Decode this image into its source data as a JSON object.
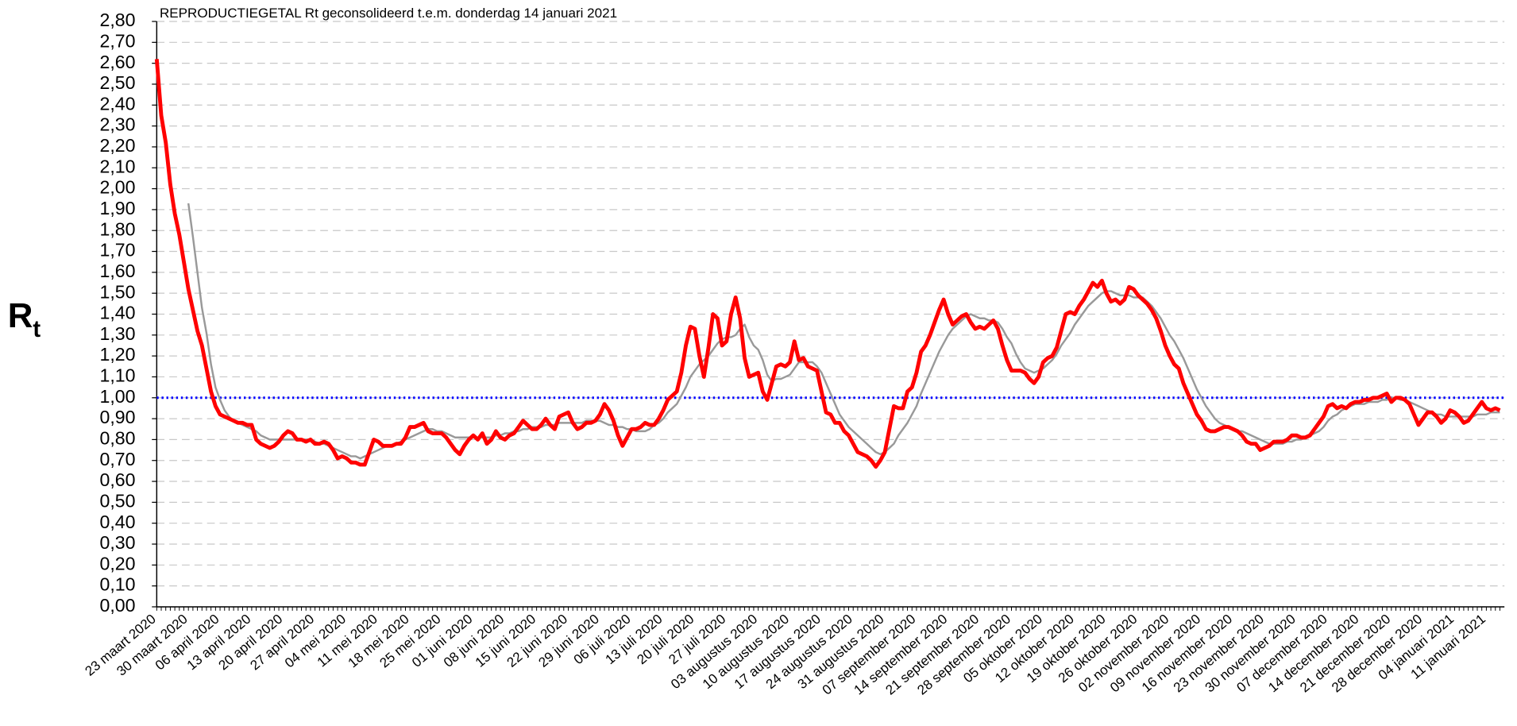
{
  "chart_data": {
    "type": "line",
    "title": "REPRODUCTIEGETAL Rt geconsolideerd t.e.m. donderdag 14 januari 2021",
    "y_label": "R",
    "y_label_sub": "t",
    "categories": [
      "23 maart 2020",
      null,
      null,
      null,
      null,
      null,
      null,
      "30 maart 2020",
      null,
      null,
      null,
      null,
      null,
      null,
      "06 april 2020",
      null,
      null,
      null,
      null,
      null,
      null,
      "13 april 2020",
      null,
      null,
      null,
      null,
      null,
      null,
      "20 april 2020",
      null,
      null,
      null,
      null,
      null,
      null,
      "27 april 2020",
      null,
      null,
      null,
      null,
      null,
      null,
      "04 mei 2020",
      null,
      null,
      null,
      null,
      null,
      null,
      "11 mei 2020",
      null,
      null,
      null,
      null,
      null,
      null,
      "18 mei 2020",
      null,
      null,
      null,
      null,
      null,
      null,
      "25 mei 2020",
      null,
      null,
      null,
      null,
      null,
      null,
      "01 juni 2020",
      null,
      null,
      null,
      null,
      null,
      null,
      "08 juni 2020",
      null,
      null,
      null,
      null,
      null,
      null,
      "15 juni 2020",
      null,
      null,
      null,
      null,
      null,
      null,
      "22 juni 2020",
      null,
      null,
      null,
      null,
      null,
      null,
      "29 juni 2020",
      null,
      null,
      null,
      null,
      null,
      null,
      "06 juli 2020",
      null,
      null,
      null,
      null,
      null,
      null,
      "13 juli 2020",
      null,
      null,
      null,
      null,
      null,
      null,
      "20 juli 2020",
      null,
      null,
      null,
      null,
      null,
      null,
      "27 juli 2020",
      null,
      null,
      null,
      null,
      null,
      null,
      "03 augustus 2020",
      null,
      null,
      null,
      null,
      null,
      null,
      "10 augustus 2020",
      null,
      null,
      null,
      null,
      null,
      null,
      "17 augustus 2020",
      null,
      null,
      null,
      null,
      null,
      null,
      "24 augustus 2020",
      null,
      null,
      null,
      null,
      null,
      null,
      "31 augustus 2020",
      null,
      null,
      null,
      null,
      null,
      null,
      "07 september 2020",
      null,
      null,
      null,
      null,
      null,
      null,
      "14 september 2020",
      null,
      null,
      null,
      null,
      null,
      null,
      "21 september 2020",
      null,
      null,
      null,
      null,
      null,
      null,
      "28 september 2020",
      null,
      null,
      null,
      null,
      null,
      null,
      "05 oktober 2020",
      null,
      null,
      null,
      null,
      null,
      null,
      "12 oktober 2020",
      null,
      null,
      null,
      null,
      null,
      null,
      "19 oktober 2020",
      null,
      null,
      null,
      null,
      null,
      null,
      "26 oktober 2020",
      null,
      null,
      null,
      null,
      null,
      null,
      "02 november 2020",
      null,
      null,
      null,
      null,
      null,
      null,
      "09 november 2020",
      null,
      null,
      null,
      null,
      null,
      null,
      "16 november 2020",
      null,
      null,
      null,
      null,
      null,
      null,
      "23 november 2020",
      null,
      null,
      null,
      null,
      null,
      null,
      "30 november 2020",
      null,
      null,
      null,
      null,
      null,
      null,
      "07 december 2020",
      null,
      null,
      null,
      null,
      null,
      null,
      "14 december 2020",
      null,
      null,
      null,
      null,
      null,
      null,
      "21 december 2020",
      null,
      null,
      null,
      null,
      null,
      null,
      "28 december 2020",
      null,
      null,
      null,
      null,
      null,
      null,
      "04 januari 2021",
      null,
      null,
      null,
      null,
      null,
      null,
      "11 januari 2021",
      null,
      null,
      null
    ],
    "series": [
      {
        "color": "#ff0000",
        "values": [
          2.62,
          2.35,
          2.22,
          2.02,
          1.88,
          1.78,
          1.65,
          1.52,
          1.42,
          1.32,
          1.25,
          1.14,
          1.03,
          0.96,
          0.92,
          0.91,
          0.9,
          0.89,
          0.88,
          0.88,
          0.87,
          0.87,
          0.8,
          0.78,
          0.77,
          0.76,
          0.77,
          0.79,
          0.82,
          0.84,
          0.83,
          0.8,
          0.8,
          0.79,
          0.8,
          0.78,
          0.78,
          0.79,
          0.78,
          0.75,
          0.71,
          0.72,
          0.71,
          0.69,
          0.69,
          0.68,
          0.68,
          0.74,
          0.8,
          0.79,
          0.77,
          0.77,
          0.77,
          0.78,
          0.78,
          0.81,
          0.86,
          0.86,
          0.87,
          0.88,
          0.84,
          0.83,
          0.83,
          0.83,
          0.81,
          0.78,
          0.75,
          0.73,
          0.77,
          0.8,
          0.82,
          0.8,
          0.83,
          0.78,
          0.8,
          0.84,
          0.81,
          0.8,
          0.82,
          0.83,
          0.86,
          0.89,
          0.87,
          0.85,
          0.85,
          0.87,
          0.9,
          0.87,
          0.85,
          0.91,
          0.92,
          0.93,
          0.88,
          0.85,
          0.86,
          0.88,
          0.88,
          0.89,
          0.92,
          0.97,
          0.94,
          0.89,
          0.82,
          0.77,
          0.81,
          0.85,
          0.85,
          0.86,
          0.88,
          0.87,
          0.87,
          0.9,
          0.94,
          0.99,
          1.01,
          1.03,
          1.12,
          1.25,
          1.34,
          1.33,
          1.2,
          1.1,
          1.24,
          1.4,
          1.38,
          1.25,
          1.27,
          1.4,
          1.48,
          1.38,
          1.19,
          1.1,
          1.11,
          1.12,
          1.03,
          0.99,
          1.07,
          1.15,
          1.16,
          1.15,
          1.17,
          1.27,
          1.18,
          1.19,
          1.15,
          1.14,
          1.13,
          1.03,
          0.93,
          0.92,
          0.88,
          0.88,
          0.84,
          0.82,
          0.78,
          0.74,
          0.73,
          0.72,
          0.7,
          0.67,
          0.7,
          0.74,
          0.85,
          0.96,
          0.95,
          0.95,
          1.03,
          1.05,
          1.12,
          1.22,
          1.25,
          1.3,
          1.36,
          1.42,
          1.47,
          1.4,
          1.35,
          1.37,
          1.39,
          1.4,
          1.36,
          1.33,
          1.34,
          1.33,
          1.35,
          1.37,
          1.33,
          1.25,
          1.18,
          1.13,
          1.13,
          1.13,
          1.12,
          1.09,
          1.07,
          1.1,
          1.17,
          1.19,
          1.2,
          1.24,
          1.32,
          1.4,
          1.41,
          1.4,
          1.44,
          1.47,
          1.51,
          1.55,
          1.53,
          1.56,
          1.5,
          1.46,
          1.47,
          1.45,
          1.47,
          1.53,
          1.52,
          1.49,
          1.47,
          1.45,
          1.42,
          1.38,
          1.32,
          1.25,
          1.2,
          1.16,
          1.14,
          1.07,
          1.02,
          0.97,
          0.92,
          0.89,
          0.85,
          0.84,
          0.84,
          0.85,
          0.86,
          0.86,
          0.85,
          0.84,
          0.82,
          0.79,
          0.78,
          0.78,
          0.75,
          0.76,
          0.77,
          0.79,
          0.79,
          0.79,
          0.8,
          0.82,
          0.82,
          0.81,
          0.81,
          0.82,
          0.85,
          0.88,
          0.91,
          0.96,
          0.97,
          0.95,
          0.96,
          0.95,
          0.97,
          0.98,
          0.98,
          0.99,
          0.99,
          1.0,
          1.0,
          1.01,
          1.02,
          0.98,
          1.0,
          1.0,
          0.99,
          0.97,
          0.92,
          0.87,
          0.9,
          0.93,
          0.93,
          0.91,
          0.88,
          0.9,
          0.94,
          0.93,
          0.91,
          0.88,
          0.89,
          0.92,
          0.95,
          0.98,
          0.95,
          0.94,
          0.95,
          0.94
        ]
      },
      {
        "color": "#999999",
        "values": [
          null,
          null,
          null,
          null,
          null,
          null,
          null,
          1.93,
          1.77,
          1.6,
          1.43,
          1.31,
          1.16,
          1.05,
          0.99,
          0.94,
          0.91,
          0.89,
          0.88,
          0.87,
          0.86,
          0.85,
          0.84,
          0.82,
          0.81,
          0.8,
          0.8,
          0.8,
          0.8,
          0.8,
          0.8,
          0.8,
          0.8,
          0.8,
          0.8,
          0.79,
          0.78,
          0.78,
          0.77,
          0.76,
          0.75,
          0.74,
          0.73,
          0.72,
          0.72,
          0.71,
          0.72,
          0.73,
          0.74,
          0.75,
          0.76,
          0.77,
          0.77,
          0.78,
          0.79,
          0.8,
          0.81,
          0.82,
          0.83,
          0.84,
          0.85,
          0.85,
          0.84,
          0.84,
          0.83,
          0.82,
          0.81,
          0.81,
          0.81,
          0.81,
          0.81,
          0.81,
          0.81,
          0.81,
          0.81,
          0.82,
          0.82,
          0.83,
          0.83,
          0.84,
          0.84,
          0.85,
          0.85,
          0.86,
          0.86,
          0.86,
          0.87,
          0.87,
          0.87,
          0.88,
          0.88,
          0.88,
          0.88,
          0.88,
          0.88,
          0.89,
          0.89,
          0.89,
          0.89,
          0.88,
          0.87,
          0.87,
          0.86,
          0.86,
          0.85,
          0.85,
          0.84,
          0.84,
          0.84,
          0.85,
          0.87,
          0.88,
          0.9,
          0.93,
          0.95,
          0.97,
          1.01,
          1.05,
          1.1,
          1.13,
          1.16,
          1.18,
          1.2,
          1.23,
          1.26,
          1.28,
          1.29,
          1.29,
          1.3,
          1.33,
          1.35,
          1.29,
          1.25,
          1.23,
          1.18,
          1.11,
          1.08,
          1.09,
          1.09,
          1.1,
          1.11,
          1.14,
          1.17,
          1.17,
          1.17,
          1.17,
          1.15,
          1.12,
          1.07,
          1.02,
          0.97,
          0.92,
          0.89,
          0.86,
          0.84,
          0.82,
          0.8,
          0.78,
          0.76,
          0.74,
          0.73,
          0.74,
          0.76,
          0.78,
          0.82,
          0.85,
          0.88,
          0.92,
          0.96,
          1.02,
          1.07,
          1.12,
          1.17,
          1.22,
          1.26,
          1.3,
          1.33,
          1.35,
          1.37,
          1.39,
          1.4,
          1.39,
          1.38,
          1.38,
          1.37,
          1.37,
          1.36,
          1.33,
          1.29,
          1.26,
          1.21,
          1.17,
          1.14,
          1.13,
          1.12,
          1.13,
          1.14,
          1.16,
          1.18,
          1.21,
          1.25,
          1.28,
          1.31,
          1.35,
          1.38,
          1.41,
          1.44,
          1.46,
          1.48,
          1.5,
          1.51,
          1.51,
          1.5,
          1.49,
          1.49,
          1.49,
          1.48,
          1.48,
          1.48,
          1.46,
          1.44,
          1.41,
          1.38,
          1.34,
          1.3,
          1.27,
          1.23,
          1.19,
          1.14,
          1.09,
          1.04,
          1.0,
          0.96,
          0.93,
          0.9,
          0.88,
          0.87,
          0.86,
          0.85,
          0.84,
          0.84,
          0.83,
          0.82,
          0.81,
          0.8,
          0.79,
          0.78,
          0.78,
          0.78,
          0.78,
          0.79,
          0.79,
          0.8,
          0.8,
          0.81,
          0.82,
          0.83,
          0.84,
          0.86,
          0.89,
          0.91,
          0.92,
          0.94,
          0.95,
          0.96,
          0.97,
          0.97,
          0.97,
          0.98,
          0.98,
          0.98,
          0.99,
          0.99,
          1.0,
          1.0,
          0.99,
          0.99,
          0.98,
          0.97,
          0.96,
          0.95,
          0.94,
          0.93,
          0.92,
          0.92,
          0.91,
          0.91,
          0.91,
          0.91,
          0.91,
          0.91,
          0.91,
          0.92,
          0.92,
          0.92,
          0.93,
          0.93,
          0.93
        ]
      }
    ],
    "reference_lines": [
      {
        "value": 1,
        "color": "#0000ff"
      }
    ],
    "ylim": [
      0,
      2.8
    ],
    "yticks": [
      {
        "value": 0,
        "label": "0,00"
      },
      {
        "value": 0.1,
        "label": "0,10"
      },
      {
        "value": 0.2,
        "label": "0,20"
      },
      {
        "value": 0.3,
        "label": "0,30"
      },
      {
        "value": 0.4,
        "label": "0,40"
      },
      {
        "value": 0.5,
        "label": "0,50"
      },
      {
        "value": 0.6,
        "label": "0,60"
      },
      {
        "value": 0.7,
        "label": "0,70"
      },
      {
        "value": 0.8,
        "label": "0,80"
      },
      {
        "value": 0.9,
        "label": "0,90"
      },
      {
        "value": 1,
        "label": "1,00"
      },
      {
        "value": 1.1,
        "label": "1,10"
      },
      {
        "value": 1.2,
        "label": "1,20"
      },
      {
        "value": 1.3,
        "label": "1,30"
      },
      {
        "value": 1.4,
        "label": "1,40"
      },
      {
        "value": 1.5,
        "label": "1,50"
      },
      {
        "value": 1.6,
        "label": "1,60"
      },
      {
        "value": 1.7,
        "label": "1,70"
      },
      {
        "value": 1.8,
        "label": "1,80"
      },
      {
        "value": 1.9,
        "label": "1,90"
      },
      {
        "value": 2,
        "label": "2,00"
      },
      {
        "value": 2.1,
        "label": "2,10"
      },
      {
        "value": 2.2,
        "label": "2,20"
      },
      {
        "value": 2.3,
        "label": "2,30"
      },
      {
        "value": 2.4,
        "label": "2,40"
      },
      {
        "value": 2.5,
        "label": "2,50"
      },
      {
        "value": 2.6,
        "label": "2,60"
      },
      {
        "value": 2.7,
        "label": "2,70"
      },
      {
        "value": 2.8,
        "label": "2,80"
      }
    ],
    "grid": true
  }
}
